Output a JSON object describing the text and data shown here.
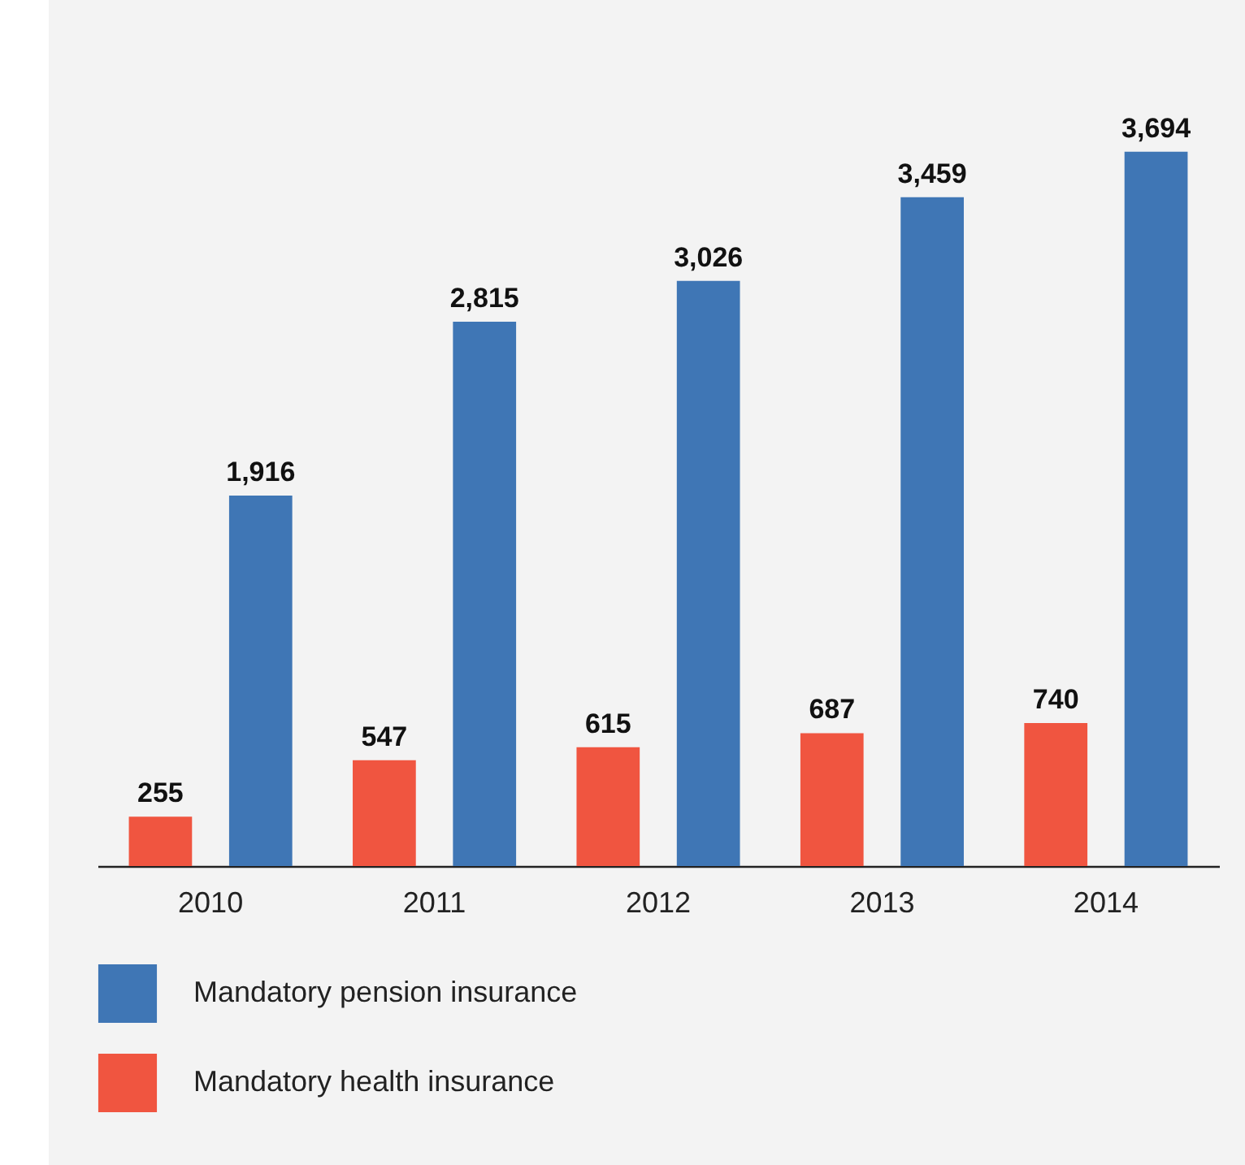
{
  "chart_data": {
    "type": "bar",
    "categories": [
      "2010",
      "2011",
      "2012",
      "2013",
      "2014"
    ],
    "series": [
      {
        "name": "Mandatory pension insurance",
        "color": "#3f76b5",
        "values": [
          1916,
          2815,
          3026,
          3459,
          3694
        ],
        "value_labels": [
          "1,916",
          "2,815",
          "3,026",
          "3,459",
          "3,694"
        ]
      },
      {
        "name": "Mandatory health insurance",
        "color": "#f05540",
        "values": [
          255,
          547,
          615,
          687,
          740
        ],
        "value_labels": [
          "255",
          "547",
          "615",
          "687",
          "740"
        ]
      }
    ],
    "legend": "bottom",
    "grid": false
  }
}
